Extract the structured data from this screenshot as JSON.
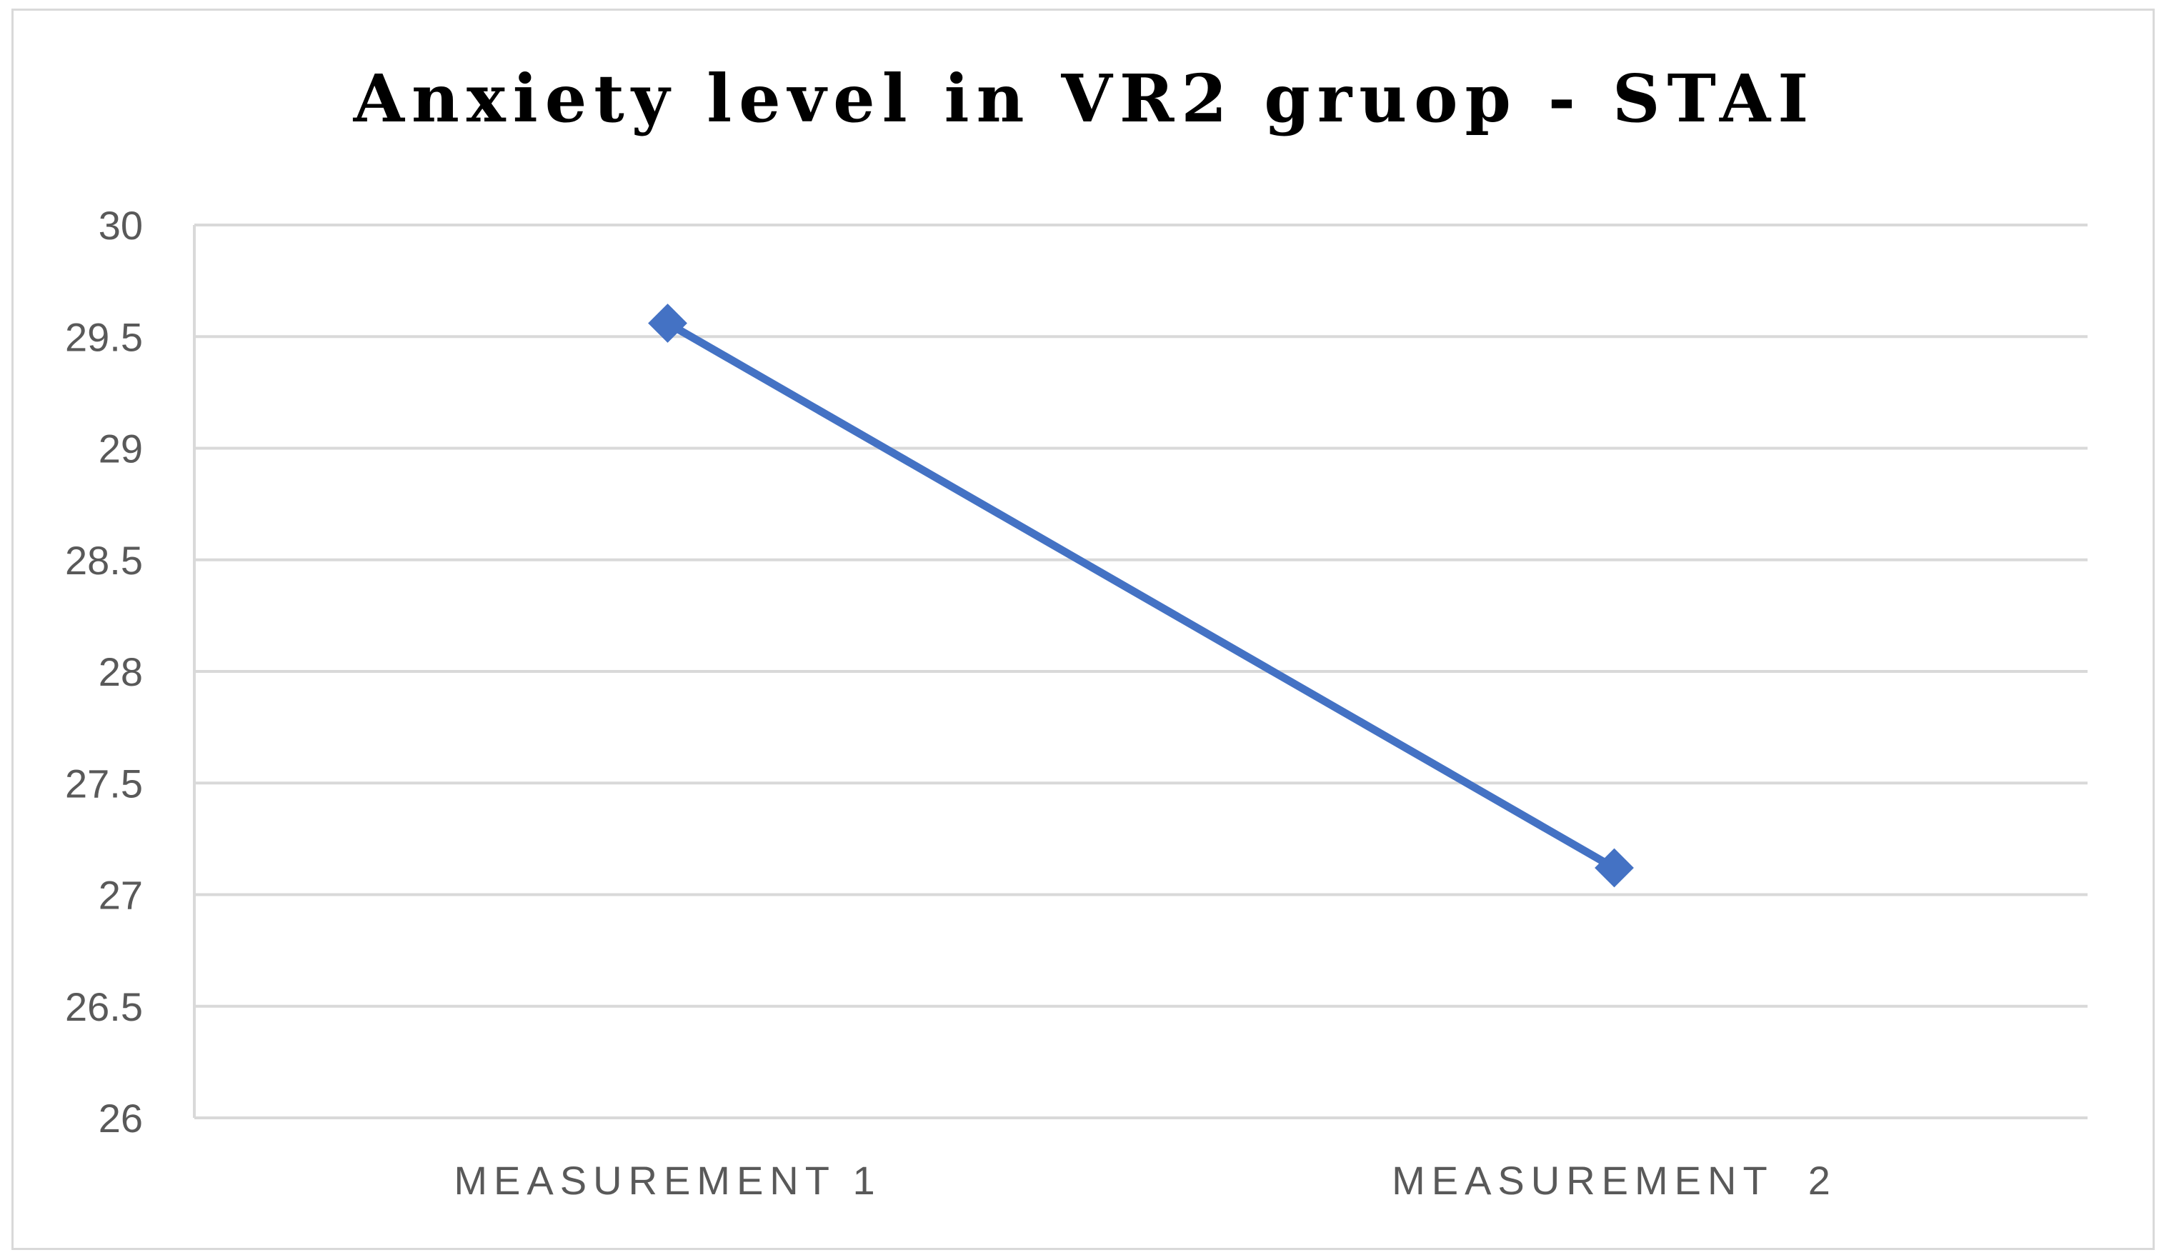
{
  "chart_data": {
    "type": "line",
    "title": "Anxiety level in VR2 gruop - STAI",
    "categories": [
      "MEASUREMENT 1",
      "MEASUREMENT  2"
    ],
    "series": [
      {
        "values": [
          29.56,
          27.12
        ],
        "color": "#4472C4",
        "marker": "diamond"
      }
    ],
    "ylim": [
      26,
      30
    ],
    "yticks": [
      "26",
      "26.5",
      "27",
      "27.5",
      "28",
      "28.5",
      "29",
      "29.5",
      "30"
    ],
    "grid": true,
    "legend": "none",
    "gridline_color": "#d9d9d9",
    "label_color": "#595959"
  }
}
